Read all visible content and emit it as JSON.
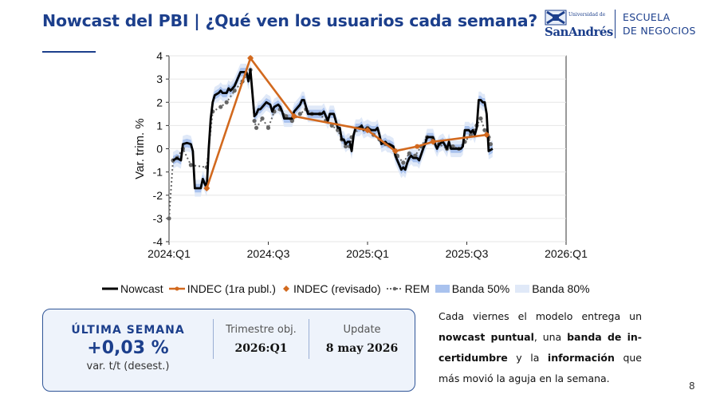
{
  "header": {
    "title": "Nowcast del PBI | ¿Qué ven los usuarios cada semana?",
    "logo": {
      "university_small": "Universidad de",
      "university_name": "SanAndrés",
      "school_line1": "ESCUELA",
      "school_line2": "DE NEGOCIOS"
    }
  },
  "chart_data": {
    "type": "line",
    "title": "",
    "xlabel": "",
    "ylabel": "Var. trim. %",
    "ylim": [
      -4,
      4
    ],
    "yticks": [
      -4,
      -3,
      -2,
      -1,
      0,
      1,
      2,
      3,
      4
    ],
    "xticks": [
      {
        "t": 0,
        "label": "2024:Q1"
      },
      {
        "t": 0.5,
        "label": "2024:Q3"
      },
      {
        "t": 1.0,
        "label": "2025:Q1"
      },
      {
        "t": 1.5,
        "label": "2025:Q3"
      },
      {
        "t": 2.0,
        "label": "2026:Q1"
      }
    ],
    "xrange": [
      0,
      2.0
    ],
    "grid": "horizontal",
    "legend": "bottom",
    "colors": {
      "nowcast": "#000000",
      "indec": "#d2691e",
      "rem": "#666666",
      "band50": "#a9c2ee",
      "band80": "#e0e9f8"
    },
    "series": [
      {
        "name": "Nowcast",
        "points": [
          [
            0.02,
            -0.5
          ],
          [
            0.04,
            -0.4
          ],
          [
            0.06,
            -0.5
          ],
          [
            0.07,
            0.2
          ],
          [
            0.09,
            0.25
          ],
          [
            0.11,
            0.2
          ],
          [
            0.12,
            -0.1
          ],
          [
            0.13,
            -1.7
          ],
          [
            0.16,
            -1.7
          ],
          [
            0.17,
            -1.3
          ],
          [
            0.19,
            -1.7
          ],
          [
            0.2,
            0.0
          ],
          [
            0.21,
            1.3
          ],
          [
            0.22,
            2.0
          ],
          [
            0.23,
            2.3
          ],
          [
            0.25,
            2.4
          ],
          [
            0.26,
            2.5
          ],
          [
            0.27,
            2.4
          ],
          [
            0.29,
            2.4
          ],
          [
            0.3,
            2.6
          ],
          [
            0.31,
            2.5
          ],
          [
            0.33,
            2.7
          ],
          [
            0.36,
            3.3
          ],
          [
            0.39,
            3.3
          ],
          [
            0.4,
            2.9
          ],
          [
            0.41,
            3.4
          ],
          [
            0.43,
            1.4
          ],
          [
            0.44,
            1.5
          ],
          [
            0.45,
            1.7
          ],
          [
            0.46,
            1.7
          ],
          [
            0.48,
            1.9
          ],
          [
            0.49,
            2.0
          ],
          [
            0.51,
            1.9
          ],
          [
            0.52,
            1.6
          ],
          [
            0.53,
            1.8
          ],
          [
            0.55,
            1.9
          ],
          [
            0.56,
            1.8
          ],
          [
            0.57,
            1.6
          ],
          [
            0.58,
            1.3
          ],
          [
            0.62,
            1.3
          ],
          [
            0.63,
            1.6
          ],
          [
            0.66,
            1.9
          ],
          [
            0.67,
            2.1
          ],
          [
            0.68,
            2.1
          ],
          [
            0.7,
            1.5
          ],
          [
            0.73,
            1.5
          ],
          [
            0.75,
            1.5
          ],
          [
            0.77,
            1.5
          ],
          [
            0.78,
            1.6
          ],
          [
            0.79,
            1.4
          ],
          [
            0.8,
            1.2
          ],
          [
            0.81,
            1.5
          ],
          [
            0.82,
            1.5
          ],
          [
            0.83,
            1.5
          ],
          [
            0.85,
            0.9
          ],
          [
            0.86,
            0.9
          ],
          [
            0.87,
            0.4
          ],
          [
            0.88,
            0.4
          ],
          [
            0.89,
            0.2
          ],
          [
            0.9,
            0.3
          ],
          [
            0.91,
            0.3
          ],
          [
            0.92,
            -0.1
          ],
          [
            0.93,
            0.6
          ],
          [
            0.94,
            0.9
          ],
          [
            0.96,
            0.9
          ],
          [
            0.97,
            1.0
          ],
          [
            0.98,
            0.8
          ],
          [
            1.0,
            0.9
          ],
          [
            1.02,
            0.8
          ],
          [
            1.04,
            0.8
          ],
          [
            1.05,
            0.9
          ],
          [
            1.06,
            0.6
          ],
          [
            1.07,
            0.2
          ],
          [
            1.09,
            0.3
          ],
          [
            1.1,
            0.2
          ],
          [
            1.11,
            0.2
          ],
          [
            1.13,
            0.1
          ],
          [
            1.14,
            -0.3
          ],
          [
            1.15,
            -0.5
          ],
          [
            1.17,
            -0.9
          ],
          [
            1.18,
            -0.8
          ],
          [
            1.19,
            -0.9
          ],
          [
            1.2,
            -0.6
          ],
          [
            1.21,
            -0.4
          ],
          [
            1.22,
            -0.3
          ],
          [
            1.23,
            -0.4
          ],
          [
            1.24,
            -0.4
          ],
          [
            1.25,
            -0.4
          ],
          [
            1.26,
            -0.5
          ],
          [
            1.28,
            0.0
          ],
          [
            1.29,
            0.2
          ],
          [
            1.3,
            0.5
          ],
          [
            1.33,
            0.5
          ],
          [
            1.34,
            0.2
          ],
          [
            1.35,
            0.0
          ],
          [
            1.36,
            0.2
          ],
          [
            1.38,
            0.3
          ],
          [
            1.4,
            0.0
          ],
          [
            1.41,
            0.3
          ],
          [
            1.42,
            0.0
          ],
          [
            1.44,
            0.0
          ],
          [
            1.45,
            0.0
          ],
          [
            1.47,
            0.0
          ],
          [
            1.48,
            0.1
          ],
          [
            1.49,
            0.8
          ],
          [
            1.51,
            0.8
          ],
          [
            1.52,
            0.7
          ],
          [
            1.53,
            0.8
          ],
          [
            1.54,
            0.6
          ],
          [
            1.55,
            0.9
          ],
          [
            1.56,
            2.1
          ],
          [
            1.57,
            2.1
          ],
          [
            1.58,
            2.0
          ],
          [
            1.59,
            2.0
          ],
          [
            1.6,
            1.5
          ],
          [
            1.61,
            -0.1
          ],
          [
            1.63,
            0.0
          ]
        ]
      },
      {
        "name": "INDEC (1ra publ.)",
        "points": [
          [
            0.19,
            -1.7
          ],
          [
            0.41,
            3.9
          ],
          [
            0.63,
            1.4
          ],
          [
            1.0,
            0.8
          ],
          [
            1.14,
            -0.1
          ],
          [
            1.25,
            0.1
          ],
          [
            1.33,
            0.3
          ],
          [
            1.6,
            0.6
          ]
        ]
      },
      {
        "name": "INDEC (revisado)",
        "points": [
          [
            0.19,
            -1.7
          ],
          [
            0.41,
            3.9
          ],
          [
            0.63,
            1.4
          ],
          [
            1.0,
            0.8
          ],
          [
            1.14,
            -0.1
          ],
          [
            1.33,
            0.3
          ],
          [
            1.6,
            0.6
          ]
        ]
      },
      {
        "name": "REM",
        "points": [
          [
            0.0,
            -3.0
          ],
          [
            0.02,
            -0.5
          ],
          [
            0.04,
            -0.4
          ],
          [
            0.07,
            0.0
          ],
          [
            0.11,
            -0.7
          ],
          [
            0.19,
            -0.8
          ],
          [
            0.22,
            1.6
          ],
          [
            0.26,
            1.8
          ],
          [
            0.29,
            2.0
          ],
          [
            0.33,
            2.5
          ],
          [
            0.37,
            2.9
          ],
          [
            0.41,
            3.4
          ],
          [
            0.43,
            1.2
          ],
          [
            0.44,
            0.9
          ],
          [
            0.47,
            1.3
          ],
          [
            0.5,
            0.9
          ],
          [
            0.53,
            1.6
          ],
          [
            0.56,
            1.7
          ],
          [
            0.59,
            1.4
          ],
          [
            0.62,
            1.2
          ],
          [
            0.66,
            1.5
          ],
          [
            0.69,
            1.7
          ],
          [
            0.72,
            1.5
          ],
          [
            0.76,
            1.5
          ],
          [
            0.79,
            1.2
          ],
          [
            0.82,
            1.0
          ],
          [
            0.85,
            0.8
          ],
          [
            0.87,
            0.4
          ],
          [
            0.89,
            0.1
          ],
          [
            0.91,
            0.1
          ],
          [
            0.92,
            0.5
          ],
          [
            0.96,
            0.9
          ],
          [
            1.0,
            0.9
          ],
          [
            1.03,
            0.6
          ],
          [
            1.06,
            0.4
          ],
          [
            1.09,
            0.2
          ],
          [
            1.12,
            0.1
          ],
          [
            1.15,
            -0.3
          ],
          [
            1.18,
            -0.6
          ],
          [
            1.21,
            -0.2
          ],
          [
            1.24,
            -0.3
          ],
          [
            1.27,
            0.1
          ],
          [
            1.3,
            0.5
          ],
          [
            1.33,
            0.4
          ],
          [
            1.36,
            0.2
          ],
          [
            1.4,
            0.0
          ],
          [
            1.43,
            0.1
          ],
          [
            1.46,
            0.0
          ],
          [
            1.49,
            0.3
          ],
          [
            1.52,
            0.6
          ],
          [
            1.55,
            1.0
          ],
          [
            1.57,
            1.3
          ],
          [
            1.59,
            0.8
          ],
          [
            1.61,
            0.5
          ],
          [
            1.62,
            0.2
          ]
        ]
      }
    ],
    "bands": [
      {
        "name": "Banda 50%",
        "halfwidth": 0.18
      },
      {
        "name": "Banda 80%",
        "halfwidth": 0.36
      }
    ]
  },
  "legend_labels": {
    "nowcast": "Nowcast",
    "indec": "INDEC (1ra publ.)",
    "indec_rev": "INDEC (revisado)",
    "rem": "REM",
    "band50": "Banda 50%",
    "band80": "Banda 80%"
  },
  "kpi": {
    "label": "ÚLTIMA SEMANA",
    "value": "+0,03 %",
    "sub": "var. t/t (desest.)",
    "target_header": "Trimestre obj.",
    "target_value": "2026:Q1",
    "update_header": "Update",
    "update_value": "8 may 2026"
  },
  "description": {
    "p1": "Cada viernes el modelo entrega un ",
    "b1": "nowcast puntual",
    "p2": ", una ",
    "b2": "banda de in-certidumbre",
    "p3": " y la ",
    "b3": "información",
    "p4": " que más movió la aguja en la semana."
  },
  "page_number": "8"
}
